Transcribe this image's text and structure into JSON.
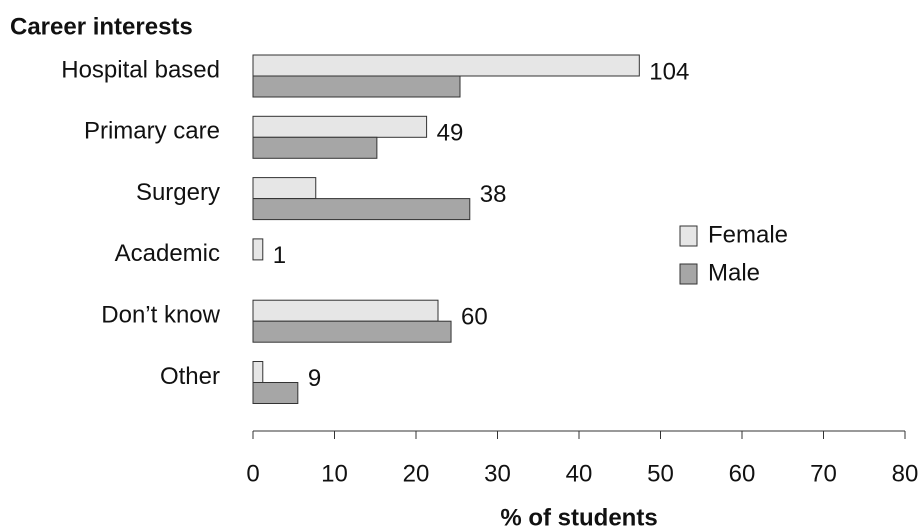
{
  "chart_data": {
    "type": "hbar",
    "title": "Career interests",
    "x_label": "% of students",
    "categories": [
      "Hospital based",
      "Primary care",
      "Surgery",
      "Academic",
      "Don’t know",
      "Other"
    ],
    "series": [
      {
        "name": "Female",
        "color": "#e6e6e6",
        "values": [
          47.4,
          21.3,
          7.7,
          1.2,
          22.7,
          1.2
        ]
      },
      {
        "name": "Male",
        "color": "#a6a6a6",
        "values": [
          25.4,
          15.2,
          26.6,
          0,
          24.3,
          5.5
        ]
      }
    ],
    "category_counts": [
      104,
      49,
      38,
      1,
      60,
      9
    ],
    "xlim": [
      0,
      80
    ],
    "xticks": [
      0,
      10,
      20,
      30,
      40,
      50,
      60,
      70,
      80
    ],
    "grid": false,
    "legend": "right"
  }
}
